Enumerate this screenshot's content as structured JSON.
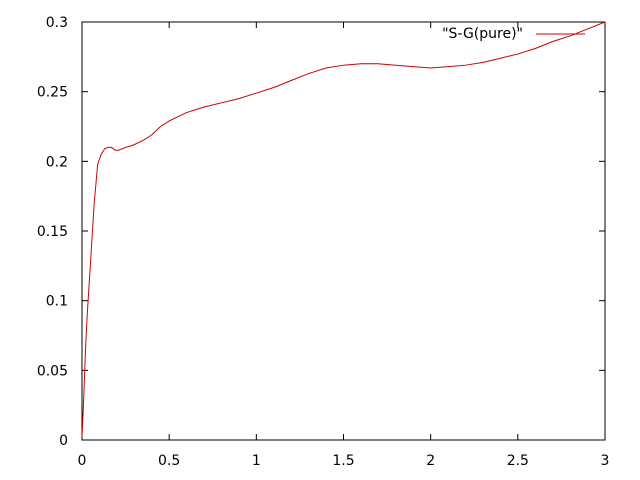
{
  "chart_data": {
    "type": "line",
    "title": "",
    "xlabel": "",
    "ylabel": "",
    "xlim": [
      0,
      3
    ],
    "ylim": [
      0,
      0.3
    ],
    "x_ticks": [
      "0",
      "0.5",
      "1",
      "1.5",
      "2",
      "2.5",
      "3"
    ],
    "y_ticks": [
      "0",
      "0.05",
      "0.1",
      "0.15",
      "0.2",
      "0.25",
      "0.3"
    ],
    "x_tick_values": [
      0,
      0.5,
      1,
      1.5,
      2,
      2.5,
      3
    ],
    "y_tick_values": [
      0,
      0.05,
      0.1,
      0.15,
      0.2,
      0.25,
      0.3
    ],
    "grid": false,
    "legend_position": "top-right",
    "series": [
      {
        "name": "\"S-G(pure)\"",
        "color": "#cc0000",
        "x": [
          0,
          0.01,
          0.02,
          0.03,
          0.05,
          0.07,
          0.09,
          0.11,
          0.13,
          0.15,
          0.17,
          0.19,
          0.21,
          0.23,
          0.25,
          0.28,
          0.3,
          0.35,
          0.4,
          0.45,
          0.5,
          0.6,
          0.7,
          0.8,
          0.9,
          1.0,
          1.1,
          1.2,
          1.3,
          1.4,
          1.5,
          1.6,
          1.7,
          1.8,
          1.9,
          2.0,
          2.1,
          2.2,
          2.3,
          2.4,
          2.5,
          2.6,
          2.7,
          2.8,
          2.9,
          3.0
        ],
        "y": [
          0.002,
          0.03,
          0.065,
          0.09,
          0.13,
          0.17,
          0.198,
          0.205,
          0.209,
          0.21,
          0.21,
          0.208,
          0.208,
          0.209,
          0.21,
          0.211,
          0.212,
          0.215,
          0.219,
          0.225,
          0.229,
          0.235,
          0.239,
          0.242,
          0.245,
          0.249,
          0.253,
          0.258,
          0.263,
          0.267,
          0.269,
          0.27,
          0.27,
          0.269,
          0.268,
          0.267,
          0.268,
          0.269,
          0.271,
          0.274,
          0.277,
          0.281,
          0.286,
          0.29,
          0.295,
          0.3
        ]
      }
    ]
  }
}
